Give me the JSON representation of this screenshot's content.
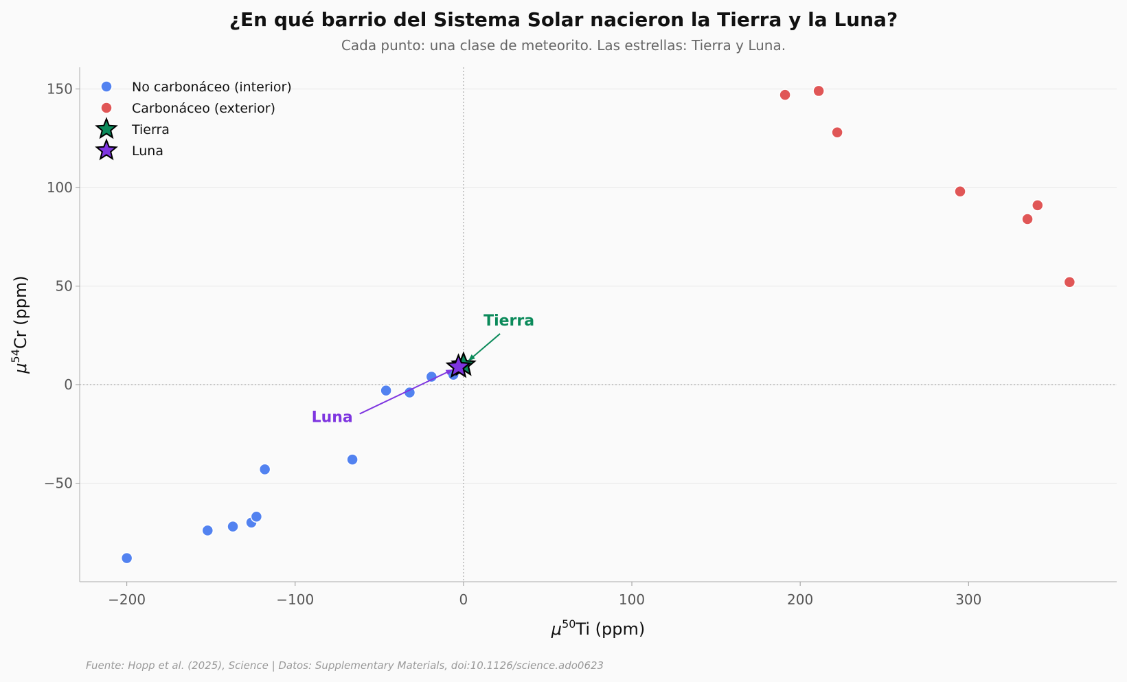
{
  "chart_data": {
    "type": "scatter",
    "title": "¿En qué barrio del Sistema Solar nacieron la Tierra y la Luna?",
    "subtitle": "Cada punto: una clase de meteorito. Las estrellas: Tierra y Luna.",
    "xlabel": {
      "prefix": "μ",
      "sup": "50",
      "rest": "Ti (ppm)"
    },
    "ylabel": {
      "prefix": "μ",
      "sup": "54",
      "rest": "Cr (ppm)"
    },
    "xlim": [
      -228,
      388
    ],
    "ylim": [
      -100,
      161
    ],
    "xticks": [
      -200,
      -100,
      0,
      100,
      200,
      300
    ],
    "yticks": [
      -50,
      0,
      50,
      100,
      150
    ],
    "xtick_labels": [
      "−200",
      "−100",
      "0",
      "100",
      "200",
      "300"
    ],
    "ytick_labels": [
      "−50",
      "0",
      "50",
      "100",
      "150"
    ],
    "grid": "horizontal",
    "reference_lines": {
      "x": 0,
      "y": 0
    },
    "legend_position": "top-left",
    "series": [
      {
        "name": "No carbonáceo (interior)",
        "color": "#5282f0",
        "marker": "circle",
        "points": [
          [
            -200,
            -88
          ],
          [
            -152,
            -74
          ],
          [
            -137,
            -72
          ],
          [
            -126,
            -70
          ],
          [
            -123,
            -67
          ],
          [
            -118,
            -43
          ],
          [
            -66,
            -38
          ],
          [
            -46,
            -3
          ],
          [
            -32,
            -4
          ],
          [
            -19,
            4
          ],
          [
            -6,
            5
          ]
        ]
      },
      {
        "name": "Carbonáceo (exterior)",
        "color": "#e05656",
        "marker": "circle",
        "points": [
          [
            191,
            147
          ],
          [
            211,
            149
          ],
          [
            222,
            128
          ],
          [
            295,
            98
          ],
          [
            335,
            84
          ],
          [
            341,
            91
          ],
          [
            360,
            52
          ]
        ]
      },
      {
        "name": "Tierra",
        "color": "#0b8a5a",
        "marker": "star",
        "points": [
          [
            0,
            10
          ]
        ]
      },
      {
        "name": "Luna",
        "color": "#7e35e0",
        "marker": "star",
        "points": [
          [
            -3,
            9
          ]
        ]
      }
    ],
    "annotations": [
      {
        "text": "Tierra",
        "color": "#0b8a5a",
        "anchor_x": 27,
        "anchor_y": 30,
        "target": [
          0,
          10
        ]
      },
      {
        "text": "Luna",
        "color": "#7e35e0",
        "anchor_x": -78,
        "anchor_y": -19,
        "target": [
          -3,
          9
        ]
      }
    ],
    "source": "Fuente: Hopp et al. (2025), Science | Datos: Supplementary Materials, doi:10.1126/science.ado0623"
  }
}
